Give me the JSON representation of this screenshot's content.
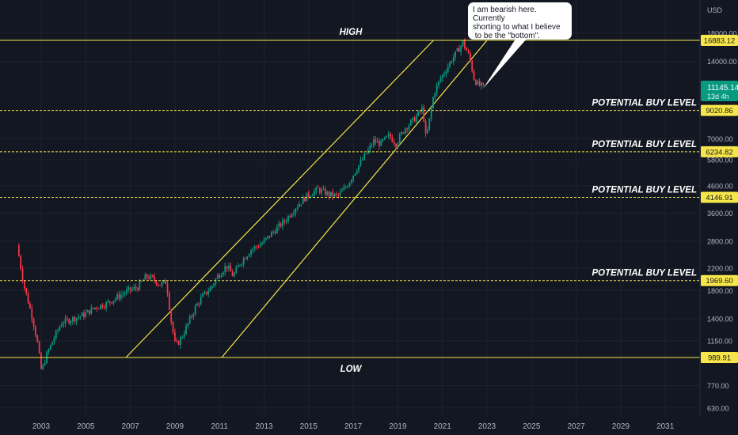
{
  "chart_data": {
    "type": "candlestick",
    "currency": "USD",
    "scale": "log",
    "grid": true,
    "x_range": [
      2002.0,
      2032.5
    ],
    "y_range": [
      580,
      21500
    ],
    "x_ticks": [
      "2003",
      "2005",
      "2007",
      "2009",
      "2011",
      "2013",
      "2015",
      "2017",
      "2019",
      "2021",
      "2023",
      "2025",
      "2027",
      "2029",
      "2031"
    ],
    "y_ticks": [
      {
        "label": "18000.00",
        "value": 18000
      },
      {
        "label": "14000.00",
        "value": 14000
      },
      {
        "label": "7000.00",
        "value": 7000
      },
      {
        "label": "5800.00",
        "value": 5800
      },
      {
        "label": "4600.00",
        "value": 4600
      },
      {
        "label": "3600.00",
        "value": 3600
      },
      {
        "label": "2800.00",
        "value": 2800
      },
      {
        "label": "2200.00",
        "value": 2200
      },
      {
        "label": "1800.00",
        "value": 1800
      },
      {
        "label": "1400.00",
        "value": 1400
      },
      {
        "label": "1150.00",
        "value": 1150
      },
      {
        "label": "770.00",
        "value": 770
      },
      {
        "label": "630.00",
        "value": 630
      }
    ],
    "horizontal_levels": [
      {
        "label": "HIGH",
        "value": 16883.12,
        "price_label": "16883.12",
        "style": "solid",
        "text_side": "middle"
      },
      {
        "label": "POTENTIAL BUY LEVEL",
        "value": 9020.86,
        "price_label": "9020.86",
        "style": "dashed",
        "text_side": "right"
      },
      {
        "label": "POTENTIAL BUY LEVEL",
        "value": 6234.82,
        "price_label": "6234.82",
        "style": "dashed",
        "text_side": "right"
      },
      {
        "label": "POTENTIAL BUY LEVEL",
        "value": 4146.91,
        "price_label": "4146.91",
        "style": "dashed",
        "text_side": "right"
      },
      {
        "label": "POTENTIAL BUY LEVEL",
        "value": 1969.6,
        "price_label": "1969.60",
        "style": "dashed",
        "text_side": "right"
      },
      {
        "label": "LOW",
        "value": 989.91,
        "price_label": "989.91",
        "style": "solid",
        "text_side": "middle"
      }
    ],
    "channel_lines": [
      {
        "start": [
          2006.8,
          989.91
        ],
        "end": [
          2020.6,
          16883.12
        ]
      },
      {
        "start": [
          2011.1,
          989.91
        ],
        "end": [
          2023.0,
          16883.12
        ]
      }
    ],
    "current_price": {
      "value": 11145.14,
      "label": "11145.14",
      "countdown": "13d 4h",
      "color": "#089981"
    },
    "candle_colors": {
      "up": "#089981",
      "down": "#f23645"
    },
    "price_path": [
      [
        2002.0,
        2700
      ],
      [
        2002.3,
        1900
      ],
      [
        2002.7,
        1400
      ],
      [
        2002.9,
        1150
      ],
      [
        2003.1,
        870
      ],
      [
        2003.3,
        1000
      ],
      [
        2003.7,
        1200
      ],
      [
        2004.0,
        1350
      ],
      [
        2004.5,
        1400
      ],
      [
        2005.0,
        1450
      ],
      [
        2005.5,
        1550
      ],
      [
        2006.0,
        1600
      ],
      [
        2006.5,
        1700
      ],
      [
        2007.0,
        1800
      ],
      [
        2007.4,
        1850
      ],
      [
        2007.8,
        2050
      ],
      [
        2008.1,
        2000
      ],
      [
        2008.4,
        1900
      ],
      [
        2008.7,
        1950
      ],
      [
        2008.9,
        1400
      ],
      [
        2009.1,
        1100
      ],
      [
        2009.3,
        1150
      ],
      [
        2009.6,
        1300
      ],
      [
        2010.0,
        1550
      ],
      [
        2010.3,
        1700
      ],
      [
        2010.7,
        1850
      ],
      [
        2011.0,
        2050
      ],
      [
        2011.4,
        2250
      ],
      [
        2011.7,
        2050
      ],
      [
        2012.0,
        2300
      ],
      [
        2012.5,
        2600
      ],
      [
        2013.0,
        2750
      ],
      [
        2013.5,
        3050
      ],
      [
        2014.0,
        3350
      ],
      [
        2014.5,
        3800
      ],
      [
        2015.0,
        4200
      ],
      [
        2015.5,
        4450
      ],
      [
        2016.0,
        4250
      ],
      [
        2016.4,
        4200
      ],
      [
        2016.8,
        4600
      ],
      [
        2017.2,
        5300
      ],
      [
        2017.6,
        6000
      ],
      [
        2018.0,
        6850
      ],
      [
        2018.3,
        6700
      ],
      [
        2018.7,
        7200
      ],
      [
        2019.0,
        6700
      ],
      [
        2019.4,
        7700
      ],
      [
        2019.8,
        8300
      ],
      [
        2020.2,
        9200
      ],
      [
        2020.35,
        6950
      ],
      [
        2020.7,
        10500
      ],
      [
        2021.0,
        12000
      ],
      [
        2021.5,
        14200
      ],
      [
        2021.9,
        16000
      ],
      [
        2022.0,
        16600
      ],
      [
        2022.3,
        14500
      ],
      [
        2022.5,
        12000
      ],
      [
        2022.7,
        11300
      ],
      [
        2022.9,
        11145
      ]
    ],
    "annotation": "I am bearish here. Currently\nshorting to what I believe\n to be the \"bottom\"."
  }
}
